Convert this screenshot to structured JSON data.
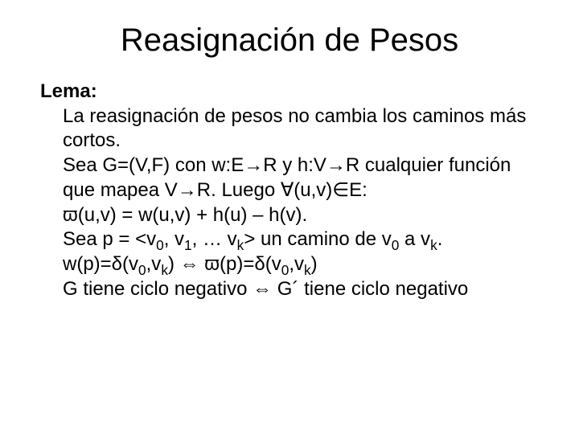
{
  "title": "Reasignación de Pesos",
  "lemma_label": "Lema:",
  "line1": "La reasignación de pesos no cambia los caminos más cortos.",
  "line2": "Sea G=(V,F) con w:E→R y h:V→R cualquier función que mapea V→R. Luego ∀(u,v)∈E:",
  "line3": "ϖ(u,v) = w(u,v) + h(u) – h(v).",
  "path_def": {
    "prefix": "Sea p = <v",
    "zero": "0",
    "comma_v1": ", v",
    "one": "1",
    "dots": ", … v",
    "k1": "k",
    "mid": "> un camino de v",
    "zero2": "0",
    "to": " a v",
    "k2": "k",
    "period": "."
  },
  "weight_line": {
    "p1": "w(p)=δ(v",
    "s1": "0",
    "p2": ",v",
    "s2": "k",
    "p3": ") ⇔ ϖ(p)=δ(v",
    "s3": "0",
    "p4": ",v",
    "s4": "k",
    "p5": ")"
  },
  "cycle_line": "G tiene ciclo negativo ⇔ G´ tiene ciclo negativo"
}
